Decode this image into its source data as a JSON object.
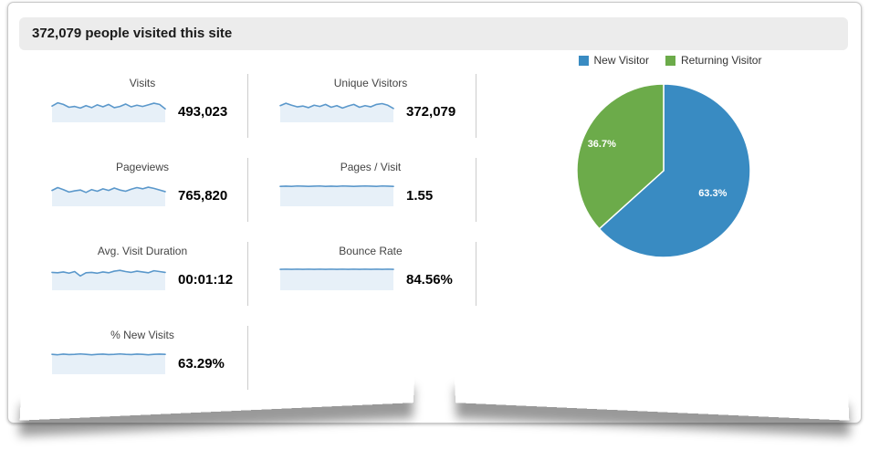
{
  "header": {
    "title": "372,079 people visited this site"
  },
  "metrics": [
    {
      "label": "Visits",
      "value": "493,023"
    },
    {
      "label": "Unique Visitors",
      "value": "372,079"
    },
    {
      "label": "Pageviews",
      "value": "765,820"
    },
    {
      "label": "Pages / Visit",
      "value": "1.55"
    },
    {
      "label": "Avg. Visit Duration",
      "value": "00:01:12"
    },
    {
      "label": "Bounce Rate",
      "value": "84.56%"
    },
    {
      "label": "% New Visits",
      "value": "63.29%"
    }
  ],
  "pie_legend": [
    {
      "label": "New Visitor",
      "color": "#398BC2"
    },
    {
      "label": "Returning Visitor",
      "color": "#6CAB4A"
    }
  ],
  "colors": {
    "spark_line": "#5B98CB",
    "spark_fill": "#E7F0F8",
    "divider": "#CCCCCC",
    "header_bg": "#ECECEC",
    "pie_blue": "#398BC2",
    "pie_green": "#6CAB4A"
  },
  "chart_data": [
    {
      "type": "pie",
      "title": "New Visitor vs Returning Visitor",
      "labels": [
        "New Visitor",
        "Returning Visitor"
      ],
      "values": [
        63.3,
        36.7
      ],
      "value_labels": [
        "63.3%",
        "36.7%"
      ],
      "colors": [
        "#398BC2",
        "#6CAB4A"
      ],
      "legend_position": "top",
      "start_angle_deg": 0,
      "direction": "clockwise"
    },
    {
      "type": "line",
      "title": "Metric sparklines (no axes shown; values normalized 0-1)",
      "series": [
        {
          "name": "Visits",
          "values": [
            0.72,
            0.88,
            0.8,
            0.66,
            0.7,
            0.62,
            0.74,
            0.64,
            0.78,
            0.68,
            0.8,
            0.64,
            0.7,
            0.82,
            0.68,
            0.76,
            0.7,
            0.78,
            0.86,
            0.8,
            0.58
          ]
        },
        {
          "name": "Unique Visitors",
          "values": [
            0.74,
            0.86,
            0.76,
            0.68,
            0.72,
            0.64,
            0.76,
            0.7,
            0.8,
            0.66,
            0.74,
            0.62,
            0.72,
            0.8,
            0.66,
            0.74,
            0.68,
            0.8,
            0.84,
            0.76,
            0.6
          ]
        },
        {
          "name": "Pageviews",
          "values": [
            0.7,
            0.84,
            0.74,
            0.62,
            0.68,
            0.72,
            0.6,
            0.74,
            0.66,
            0.78,
            0.7,
            0.82,
            0.72,
            0.66,
            0.76,
            0.84,
            0.78,
            0.86,
            0.8,
            0.72,
            0.64
          ]
        },
        {
          "name": "Pages / Visit",
          "values": [
            0.9,
            0.91,
            0.9,
            0.92,
            0.91,
            0.9,
            0.91,
            0.92,
            0.9,
            0.91,
            0.9,
            0.92,
            0.91,
            0.9,
            0.91,
            0.92,
            0.91,
            0.9,
            0.92,
            0.91,
            0.9
          ]
        },
        {
          "name": "Avg. Visit Duration",
          "values": [
            0.8,
            0.78,
            0.82,
            0.76,
            0.84,
            0.62,
            0.78,
            0.8,
            0.76,
            0.82,
            0.78,
            0.86,
            0.9,
            0.84,
            0.8,
            0.86,
            0.82,
            0.78,
            0.88,
            0.84,
            0.8
          ]
        },
        {
          "name": "Bounce Rate",
          "values": [
            0.95,
            0.96,
            0.95,
            0.96,
            0.95,
            0.96,
            0.95,
            0.96,
            0.95,
            0.96,
            0.95,
            0.96,
            0.95,
            0.96,
            0.95,
            0.96,
            0.95,
            0.96,
            0.95,
            0.96,
            0.95
          ]
        },
        {
          "name": "% New Visits",
          "values": [
            0.9,
            0.88,
            0.91,
            0.89,
            0.9,
            0.92,
            0.9,
            0.88,
            0.9,
            0.91,
            0.89,
            0.9,
            0.92,
            0.9,
            0.89,
            0.91,
            0.9,
            0.88,
            0.9,
            0.91,
            0.9
          ]
        }
      ]
    }
  ]
}
